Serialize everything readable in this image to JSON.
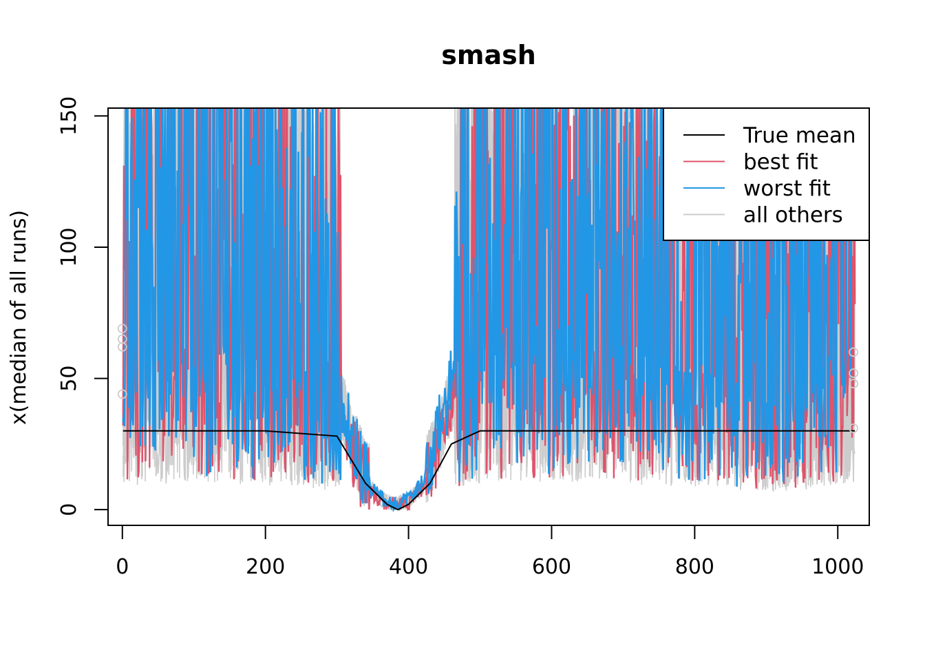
{
  "chart_data": {
    "type": "line",
    "title": "smash",
    "xlabel": "",
    "ylabel": "x(median of all runs)",
    "xlim": [
      -20,
      1044
    ],
    "ylim": [
      -6,
      153
    ],
    "x_ticks": [
      0,
      200,
      400,
      600,
      800,
      1000
    ],
    "y_ticks": [
      0,
      50,
      100,
      150
    ],
    "x_range": [
      1,
      1024
    ],
    "legend": {
      "position": "top-right",
      "entries": [
        {
          "label": "True mean",
          "color": "#000000"
        },
        {
          "label": "best fit",
          "color": "#DF536B"
        },
        {
          "label": "worst fit",
          "color": "#2297E6"
        },
        {
          "label": "all others",
          "color": "#CCCCCC"
        }
      ]
    },
    "series": [
      {
        "name": "True mean",
        "color": "#000000",
        "x": [
          1,
          100,
          200,
          300,
          340,
          370,
          385,
          400,
          430,
          460,
          500,
          600,
          700,
          800,
          900,
          1024
        ],
        "values": [
          30,
          30,
          30,
          28,
          10,
          2,
          0,
          2,
          10,
          25,
          30,
          30,
          30,
          30,
          30,
          30
        ]
      },
      {
        "name": "best fit",
        "color": "#DF536B",
        "x": [
          1,
          50,
          100,
          150,
          200,
          250,
          300,
          320,
          340,
          360,
          380,
          400,
          420,
          440,
          460,
          480,
          500,
          550,
          600,
          650,
          700,
          750,
          800,
          850,
          900,
          950,
          1000,
          1024
        ],
        "values": [
          70,
          75,
          80,
          75,
          70,
          60,
          45,
          20,
          8,
          3,
          1,
          2,
          8,
          20,
          40,
          60,
          75,
          80,
          80,
          78,
          75,
          70,
          65,
          55,
          45,
          55,
          70,
          75
        ]
      },
      {
        "name": "worst fit",
        "color": "#2297E6",
        "x": [
          1,
          50,
          100,
          150,
          200,
          250,
          300,
          320,
          340,
          360,
          380,
          400,
          420,
          440,
          460,
          480,
          500,
          550,
          600,
          650,
          700,
          750,
          800,
          850,
          900,
          950,
          1000,
          1024
        ],
        "values": [
          75,
          80,
          85,
          80,
          75,
          65,
          50,
          25,
          10,
          4,
          1,
          3,
          10,
          25,
          45,
          65,
          80,
          85,
          85,
          82,
          80,
          75,
          70,
          60,
          50,
          60,
          75,
          80
        ]
      },
      {
        "name": "all others",
        "color": "#CCCCCC",
        "x": [
          1,
          50,
          100,
          150,
          200,
          250,
          300,
          320,
          340,
          360,
          380,
          400,
          420,
          440,
          460,
          480,
          500,
          550,
          600,
          650,
          700,
          750,
          800,
          850,
          900,
          950,
          1000,
          1024
        ],
        "values": [
          60,
          65,
          70,
          65,
          60,
          55,
          45,
          25,
          10,
          4,
          1,
          3,
          8,
          22,
          40,
          55,
          65,
          70,
          70,
          68,
          65,
          60,
          55,
          50,
          45,
          50,
          60,
          65
        ]
      }
    ]
  }
}
